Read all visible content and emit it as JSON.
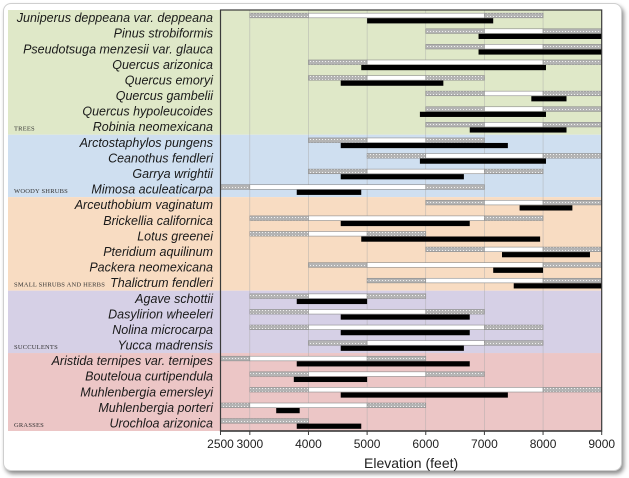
{
  "chart_data": {
    "type": "bar",
    "subtype": "range",
    "title": "",
    "xlabel": "Elevation (feet)",
    "ylabel": "",
    "xlim": [
      2500,
      9000
    ],
    "xticks": [
      2500,
      3000,
      4000,
      5000,
      6000,
      7000,
      8000,
      9000
    ],
    "grid": "vertical",
    "legend": "none",
    "segment_types": {
      "hatched": "marginal range",
      "white": "core range",
      "black": "observed range"
    },
    "colors": {
      "Trees": "#dfe8c8",
      "Woody Shrubs": "#cfdff0",
      "Small Shrubs and Herbs": "#f8dcc2",
      "Succulents": "#d6d0e6",
      "Grasses": "#ecc6c6",
      "hatched": "#a8a8a8",
      "white": "#ffffff",
      "black": "#000000"
    },
    "groups": [
      {
        "name": "Trees",
        "label": "TREES",
        "species": [
          {
            "name": "Juniperus deppeana var. deppeana",
            "hatched_low": [
              3000,
              4000
            ],
            "white": [
              4000,
              7000
            ],
            "hatched_high": [
              7000,
              8000
            ],
            "black": [
              5000,
              7150
            ]
          },
          {
            "name": "Pinus strobiformis",
            "hatched_low": [
              6000,
              7000
            ],
            "white": [
              7000,
              8000
            ],
            "hatched_high": [
              8000,
              9000
            ],
            "black": [
              6900,
              9000
            ]
          },
          {
            "name": "Pseudotsuga menzesii var. glauca",
            "hatched_low": [
              6000,
              7000
            ],
            "white": [
              7000,
              8000
            ],
            "hatched_high": [
              8000,
              9000
            ],
            "black": [
              6900,
              9000
            ]
          },
          {
            "name": "Quercus arizonica",
            "hatched_low": [
              4000,
              5000
            ],
            "white": [
              5000,
              8000
            ],
            "hatched_high": [
              8000,
              9000
            ],
            "black": [
              4900,
              8050
            ]
          },
          {
            "name": "Quercus emoryi",
            "hatched_low": [
              4000,
              5000
            ],
            "white": [
              5000,
              6000
            ],
            "hatched_high": [
              6000,
              7000
            ],
            "black": [
              4550,
              6300
            ]
          },
          {
            "name": "Quercus gambelii",
            "hatched_low": [
              6000,
              7000
            ],
            "white": [
              7000,
              8000
            ],
            "hatched_high": [
              8000,
              9000
            ],
            "black": [
              7800,
              8400
            ]
          },
          {
            "name": "Quercus hypoleucoides",
            "hatched_low": [
              6000,
              7000
            ],
            "white": [
              7000,
              8000
            ],
            "hatched_high": [
              8000,
              9000
            ],
            "black": [
              5900,
              8050
            ]
          },
          {
            "name": "Robinia neomexicana",
            "hatched_low": [
              6000,
              7000
            ],
            "white": [
              7000,
              8000
            ],
            "hatched_high": [
              8000,
              9000
            ],
            "black": [
              6750,
              8400
            ]
          }
        ]
      },
      {
        "name": "Woody Shrubs",
        "label": "WOODY SHRUBS",
        "species": [
          {
            "name": "Arctostaphylos pungens",
            "hatched_low": [
              4000,
              5000
            ],
            "white": [
              5000,
              6000
            ],
            "hatched_high": [
              6000,
              7000
            ],
            "black": [
              4550,
              7400
            ]
          },
          {
            "name": "Ceanothus fendleri",
            "hatched_low": [
              5000,
              6000
            ],
            "white": [
              6000,
              8000
            ],
            "hatched_high": [
              8000,
              9000
            ],
            "black": [
              5900,
              8050
            ]
          },
          {
            "name": "Garrya wrightii",
            "hatched_low": [
              4000,
              5000
            ],
            "white": [
              5000,
              7000
            ],
            "hatched_high": [
              7000,
              8000
            ],
            "black": [
              4550,
              6650
            ]
          },
          {
            "name": "Mimosa aculeaticarpa",
            "hatched_low": [
              2500,
              3000
            ],
            "white": [
              3000,
              6000
            ],
            "hatched_high": [
              6000,
              7000
            ],
            "black": [
              3800,
              4900
            ]
          }
        ]
      },
      {
        "name": "Small Shrubs and Herbs",
        "label": "SMALL SHRUBS AND HERBS",
        "species": [
          {
            "name": "Arceuthobium vaginatum",
            "hatched_low": [
              6000,
              7000
            ],
            "white": [
              7000,
              8000
            ],
            "hatched_high": [
              8000,
              9000
            ],
            "black": [
              7600,
              8500
            ]
          },
          {
            "name": "Brickellia californica",
            "hatched_low": [
              3000,
              4000
            ],
            "white": [
              4000,
              7000
            ],
            "hatched_high": [
              7000,
              8000
            ],
            "black": [
              4550,
              6750
            ]
          },
          {
            "name": "Lotus greenei",
            "hatched_low": [
              3000,
              4000
            ],
            "white": [
              4000,
              5000
            ],
            "hatched_high": [
              5000,
              6000
            ],
            "black": [
              4900,
              7950
            ]
          },
          {
            "name": "Pteridium aquilinum",
            "hatched_low": [
              6000,
              7000
            ],
            "white": [
              7000,
              8000
            ],
            "hatched_high": [
              8000,
              9000
            ],
            "black": [
              7300,
              8800
            ]
          },
          {
            "name": "Packera neomexicana",
            "hatched_low": [
              4000,
              5000
            ],
            "white": [
              5000,
              8000
            ],
            "hatched_high": [
              8000,
              9000
            ],
            "black": [
              7150,
              8000
            ]
          },
          {
            "name": "Thalictrum fendleri",
            "hatched_low": [
              5000,
              6000
            ],
            "white": [
              6000,
              8000
            ],
            "hatched_high": [
              8000,
              9000
            ],
            "black": [
              7500,
              9000
            ]
          }
        ]
      },
      {
        "name": "Succulents",
        "label": "SUCCULENTS",
        "species": [
          {
            "name": "Agave schottii",
            "hatched_low": [
              3000,
              4000
            ],
            "white": [
              4000,
              5000
            ],
            "hatched_high": [
              5000,
              6000
            ],
            "black": [
              3800,
              5000
            ]
          },
          {
            "name": "Dasylirion wheeleri",
            "hatched_low": [
              3000,
              4000
            ],
            "white": [
              4000,
              6000
            ],
            "hatched_high": [
              6000,
              7000
            ],
            "black": [
              4550,
              6750
            ]
          },
          {
            "name": "Nolina microcarpa",
            "hatched_low": [
              3000,
              4000
            ],
            "white": [
              4000,
              7000
            ],
            "hatched_high": [
              7000,
              8000
            ],
            "black": [
              4550,
              6750
            ]
          },
          {
            "name": "Yucca madrensis",
            "hatched_low": [
              4000,
              5000
            ],
            "white": [
              5000,
              7000
            ],
            "hatched_high": [
              7000,
              8000
            ],
            "black": [
              4550,
              6650
            ]
          }
        ]
      },
      {
        "name": "Grasses",
        "label": "GRASSES",
        "species": [
          {
            "name": "Aristida ternipes var. ternipes",
            "hatched_low": [
              2500,
              3000
            ],
            "white": [
              3000,
              5000
            ],
            "hatched_high": [
              5000,
              6000
            ],
            "black": [
              3800,
              6750
            ]
          },
          {
            "name": "Bouteloua curtipendula",
            "hatched_low": [
              3000,
              4000
            ],
            "white": [
              4000,
              6000
            ],
            "hatched_high": [
              6000,
              7000
            ],
            "black": [
              3750,
              5000
            ]
          },
          {
            "name": "Muhlenbergia emersleyi",
            "hatched_low": [
              3000,
              4000
            ],
            "white": [
              4000,
              8000
            ],
            "hatched_high": [
              8000,
              9000
            ],
            "black": [
              4550,
              7400
            ]
          },
          {
            "name": "Muhlenbergia porteri",
            "hatched_low": [
              2500,
              3000
            ],
            "white": [
              3000,
              5000
            ],
            "hatched_high": [
              5000,
              6000
            ],
            "black": [
              3450,
              3850
            ]
          },
          {
            "name": "Urochloa arizonica",
            "hatched_low": [
              2500,
              4000
            ],
            "white": null,
            "hatched_high": null,
            "black": [
              3800,
              4900
            ]
          }
        ]
      }
    ]
  }
}
